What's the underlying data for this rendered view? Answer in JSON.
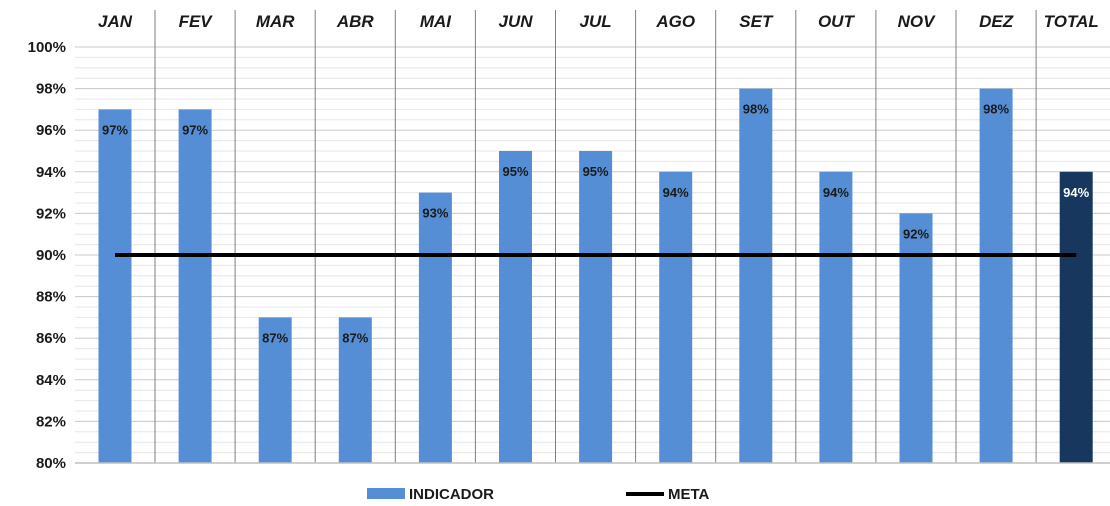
{
  "chart_data": {
    "type": "bar",
    "title": "",
    "xlabel": "",
    "ylabel": "",
    "categories": [
      "JAN",
      "FEV",
      "MAR",
      "ABR",
      "MAI",
      "JUN",
      "JUL",
      "AGO",
      "SET",
      "OUT",
      "NOV",
      "DEZ",
      "TOTAL"
    ],
    "series": [
      {
        "name": "INDICADOR",
        "values": [
          97,
          97,
          87,
          87,
          93,
          95,
          95,
          94,
          98,
          94,
          92,
          98,
          94
        ],
        "labels": [
          "97%",
          "97%",
          "87%",
          "87%",
          "93%",
          "95%",
          "95%",
          "94%",
          "98%",
          "94%",
          "92%",
          "98%",
          "94%"
        ],
        "color": "#558ed5",
        "highlight_color": "#17375e",
        "highlight_index": 12
      },
      {
        "name": "META",
        "type": "line",
        "values": [
          90,
          90,
          90,
          90,
          90,
          90,
          90,
          90,
          90,
          90,
          90,
          90,
          90
        ],
        "color": "#000000"
      }
    ],
    "ylim": [
      80,
      100
    ],
    "yticks": [
      80,
      82,
      84,
      86,
      88,
      90,
      92,
      94,
      96,
      98,
      100
    ],
    "ytick_labels": [
      "80%",
      "82%",
      "84%",
      "86%",
      "88%",
      "90%",
      "92%",
      "94%",
      "96%",
      "98%",
      "100%"
    ],
    "x_axis_position": "top",
    "grid": true,
    "legend_position": "bottom"
  }
}
